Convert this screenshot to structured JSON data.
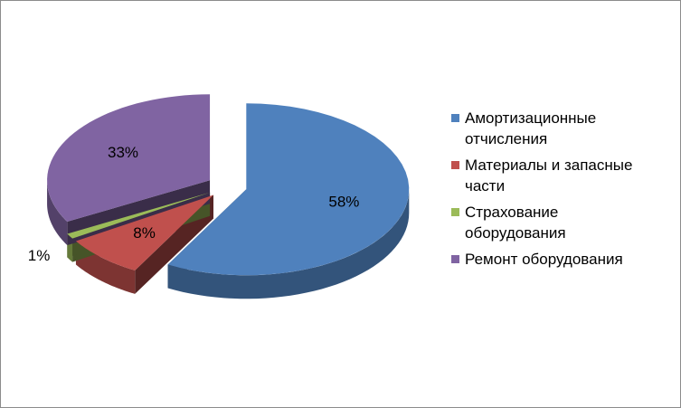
{
  "chart_data": {
    "type": "pie",
    "categories": [
      "Амортизационные отчисления",
      "Материалы и запасные части",
      "Страхование оборудования",
      "Ремонт оборудования"
    ],
    "values": [
      58,
      8,
      1,
      33
    ],
    "value_labels": [
      "58%",
      "8%",
      "1%",
      "33%"
    ],
    "colors": [
      "#4f81bd",
      "#c0504d",
      "#9bbb59",
      "#8064a2"
    ],
    "legend": "right"
  }
}
